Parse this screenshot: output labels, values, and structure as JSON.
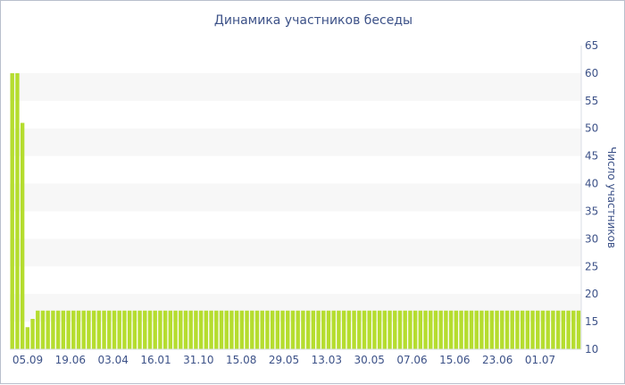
{
  "chart_data": {
    "type": "bar",
    "title": "Динамика участников беседы",
    "ylabel": "Число участников",
    "ylim": [
      10,
      65
    ],
    "yticks": [
      10,
      15,
      20,
      25,
      30,
      35,
      40,
      45,
      50,
      55,
      60,
      65
    ],
    "xtick_labels": [
      "05.09",
      "19.06",
      "03.04",
      "16.01",
      "31.10",
      "15.08",
      "29.05",
      "13.03",
      "30.05",
      "07.06",
      "15.06",
      "23.06",
      "01.07"
    ],
    "bar_color": "#b5dd2f",
    "band_color": "#f7f7f7",
    "values": [
      60,
      60,
      51,
      14,
      15.5,
      17,
      17,
      17,
      17,
      17,
      17,
      17,
      17,
      17,
      17,
      17,
      17,
      17,
      17,
      17,
      17,
      17,
      17,
      17,
      17,
      17,
      17,
      17,
      17,
      17,
      17,
      17,
      17,
      17,
      17,
      17,
      17,
      17,
      17,
      17,
      17,
      17,
      17,
      17,
      17,
      17,
      17,
      17,
      17,
      17,
      17,
      17,
      17,
      17,
      17,
      17,
      17,
      17,
      17,
      17,
      17,
      17,
      17,
      17,
      17,
      17,
      17,
      17,
      17,
      17,
      17,
      17,
      17,
      17,
      17,
      17,
      17,
      17,
      17,
      17,
      17,
      17,
      17,
      17,
      17,
      17,
      17,
      17,
      17,
      17,
      17,
      17,
      17,
      17,
      17,
      17,
      17,
      17,
      17,
      17,
      17,
      17,
      17,
      17,
      17,
      17,
      17,
      17,
      17,
      17,
      17,
      17
    ]
  }
}
